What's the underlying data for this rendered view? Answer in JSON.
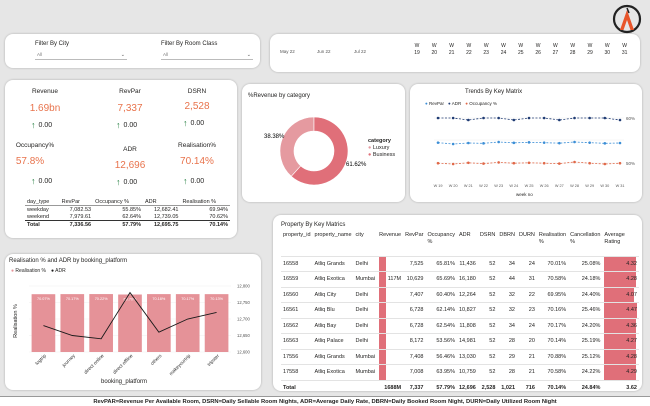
{
  "filters": {
    "city_label": "Filter By City",
    "city_value": "All",
    "room_label": "Filter By Room Class",
    "room_value": "All",
    "months": [
      "May 22",
      "Jun 22",
      "Jul 22"
    ],
    "weeks": [
      {
        "top": "W",
        "bottom": "19"
      },
      {
        "top": "W",
        "bottom": "20"
      },
      {
        "top": "W",
        "bottom": "21"
      },
      {
        "top": "W",
        "bottom": "22"
      },
      {
        "top": "W",
        "bottom": "23"
      },
      {
        "top": "W",
        "bottom": "24"
      },
      {
        "top": "W",
        "bottom": "25"
      },
      {
        "top": "W",
        "bottom": "26"
      },
      {
        "top": "W",
        "bottom": "27"
      },
      {
        "top": "W",
        "bottom": "28"
      },
      {
        "top": "W",
        "bottom": "29"
      },
      {
        "top": "W",
        "bottom": "30"
      },
      {
        "top": "W",
        "bottom": "31"
      }
    ]
  },
  "kpis": {
    "revenue_label": "Revenue",
    "revenue_value": "1.69bn",
    "revenue_delta": "0.00",
    "revpar_label": "RevPar",
    "revpar_value": "7,337",
    "revpar_delta": "0.00",
    "dsrn_label": "DSRN",
    "dsrn_value": "2,528",
    "dsrn_delta": "0.00",
    "occupancy_label": "Occupancy%",
    "occupancy_value": "57.8%",
    "occupancy_delta": "0.00",
    "adr_label": "ADR",
    "adr_value": "12,696",
    "adr_delta": "0.00",
    "realisation_label": "Realisation%",
    "realisation_value": "70.14%",
    "realisation_delta": "0.00",
    "table": {
      "headers": [
        "day_type",
        "RevPar",
        "Occupancy %",
        "ADR",
        "Realisation %"
      ],
      "rows": [
        [
          "weekday",
          "7,082.53",
          "55.85%",
          "12,682.41",
          "69.94%"
        ],
        [
          "weekend",
          "7,979.61",
          "62.64%",
          "12,739.05",
          "70.62%"
        ],
        [
          "Total",
          "7,336.56",
          "57.79%",
          "12,695.75",
          "70.14%"
        ]
      ]
    }
  },
  "donut": {
    "title": "%Revenue by category",
    "legend_title": "category",
    "labels": [
      "38.38%",
      "61.62%"
    ],
    "legend": [
      "Luxury",
      "Business"
    ]
  },
  "trends": {
    "title": "Trends By Key Matrix",
    "legend": [
      "RevPar",
      "ADR",
      "Occupancy %"
    ],
    "xlabel": "week no",
    "y_right": [
      "60%",
      "50%"
    ]
  },
  "property": {
    "title": "Property By Key Matrics",
    "headers": [
      "property_id",
      "property_name",
      "city",
      "Revenue",
      "RevPar",
      "Occupancy %",
      "ADR",
      "DSRN",
      "DBRN",
      "DURN",
      "Realisation %",
      "Cancellation %",
      "Average Rating"
    ],
    "rows": [
      [
        "16558",
        "Atliq Grands",
        "Delhi",
        "",
        "7,525",
        "65.81%",
        "11,436",
        "52",
        "34",
        "24",
        "70.01%",
        "25.08%",
        "4.32"
      ],
      [
        "16559",
        "Atliq Exotica",
        "Mumbai",
        "117M",
        "10,629",
        "65.69%",
        "16,180",
        "52",
        "44",
        "31",
        "70.58%",
        "24.18%",
        "4.28"
      ],
      [
        "16560",
        "Atliq City",
        "Delhi",
        "",
        "7,407",
        "60.40%",
        "12,264",
        "52",
        "32",
        "22",
        "69.95%",
        "24.40%",
        "4.07"
      ],
      [
        "16561",
        "Atliq Blu",
        "Delhi",
        "",
        "6,728",
        "62.14%",
        "10,827",
        "52",
        "32",
        "23",
        "70.16%",
        "25.46%",
        "4.47"
      ],
      [
        "16562",
        "Atliq Bay",
        "Delhi",
        "",
        "6,728",
        "62.54%",
        "11,808",
        "52",
        "34",
        "24",
        "70.17%",
        "24.20%",
        "4.36"
      ],
      [
        "16563",
        "Atliq Palace",
        "Delhi",
        "",
        "8,172",
        "53.56%",
        "14,981",
        "52",
        "28",
        "20",
        "70.14%",
        "25.19%",
        "4.27"
      ],
      [
        "17556",
        "Atliq Grands",
        "Mumbai",
        "",
        "7,408",
        "56.46%",
        "13,030",
        "52",
        "29",
        "21",
        "70.88%",
        "25.12%",
        "4.28"
      ],
      [
        "17558",
        "Atliq Exotica",
        "Mumbai",
        "",
        "7,008",
        "63.95%",
        "10,759",
        "52",
        "28",
        "21",
        "70.58%",
        "24.22%",
        "4.29"
      ]
    ],
    "total": [
      "Total",
      "",
      "",
      "1688M",
      "7,337",
      "57.79%",
      "12,696",
      "2,528",
      "1,021",
      "716",
      "70.14%",
      "24.84%",
      "3.62"
    ]
  },
  "platform": {
    "title": "Realisation % and ADR by booking_platform",
    "legend": [
      "Realisation %",
      "ADR"
    ],
    "xlabel": "booking_platform",
    "ylabel": "Realisation %"
  },
  "footer": {
    "text": "RevPAR=Revenue Per Available Room, DSRN=Daily Sellable Room Nights, ADR=Average Daily Rate, DBRN=Daily Booked Room Night, DURN=Daily Utilized Room Night"
  },
  "colors": {
    "accent": "#e8734c",
    "bar": "#e59298",
    "donut_luxury": "#e59aa0",
    "donut_business": "#e06f79",
    "revpar": "#3b8ed6",
    "adr": "#1f3b73",
    "occupancy": "#e06848"
  },
  "chart_data": [
    {
      "type": "pie",
      "title": "%Revenue by category",
      "categories": [
        "Luxury",
        "Business"
      ],
      "values": [
        38.38,
        61.62
      ]
    },
    {
      "type": "line",
      "title": "Trends By Key Matrix",
      "xlabel": "week no",
      "categories": [
        "W 19",
        "W 20",
        "W 21",
        "W 22",
        "W 23",
        "W 24",
        "W 25",
        "W 26",
        "W 27",
        "W 28",
        "W 29",
        "W 30",
        "W 31"
      ],
      "series": [
        {
          "name": "RevPar",
          "values": [
            7340,
            7260,
            7320,
            7300,
            7380,
            7330,
            7360,
            7340,
            7310,
            7380,
            7340,
            7300,
            7320
          ]
        },
        {
          "name": "ADR",
          "values": [
            12700,
            12700,
            12690,
            12700,
            12700,
            12690,
            12700,
            12700,
            12690,
            12700,
            12700,
            12700,
            12690
          ]
        },
        {
          "name": "Occupancy %",
          "values": [
            57.8,
            57.6,
            57.9,
            57.7,
            58.0,
            57.8,
            57.9,
            57.8,
            57.7,
            58.1,
            57.8,
            57.6,
            57.8
          ]
        }
      ],
      "y_right_ticks": [
        "60%",
        "50%"
      ]
    },
    {
      "type": "bar",
      "title": "Realisation % and ADR by booking_platform",
      "xlabel": "booking_platform",
      "ylabel": "Realisation %",
      "categories": [
        "logtrip",
        "journey",
        "direct online",
        "direct offline",
        "others",
        "makeyourtrip",
        "tripster"
      ],
      "series": [
        {
          "name": "Realisation %",
          "values": [
            70.07,
            70.17,
            70.22,
            69.7,
            70.18,
            70.17,
            70.13
          ]
        },
        {
          "name": "ADR",
          "values": [
            12680,
            12650,
            12640,
            12780,
            12660,
            12700,
            12720
          ]
        }
      ],
      "data_labels": [
        "70.07%",
        "70.17%",
        "70.22%",
        "69.70%",
        "70.18%",
        "70.17%",
        "70.13%"
      ],
      "y_right_ticks": [
        "12,800",
        "12,750",
        "12,700",
        "12,650",
        "12,600"
      ],
      "y_right_lim": [
        12600,
        12800
      ]
    }
  ]
}
